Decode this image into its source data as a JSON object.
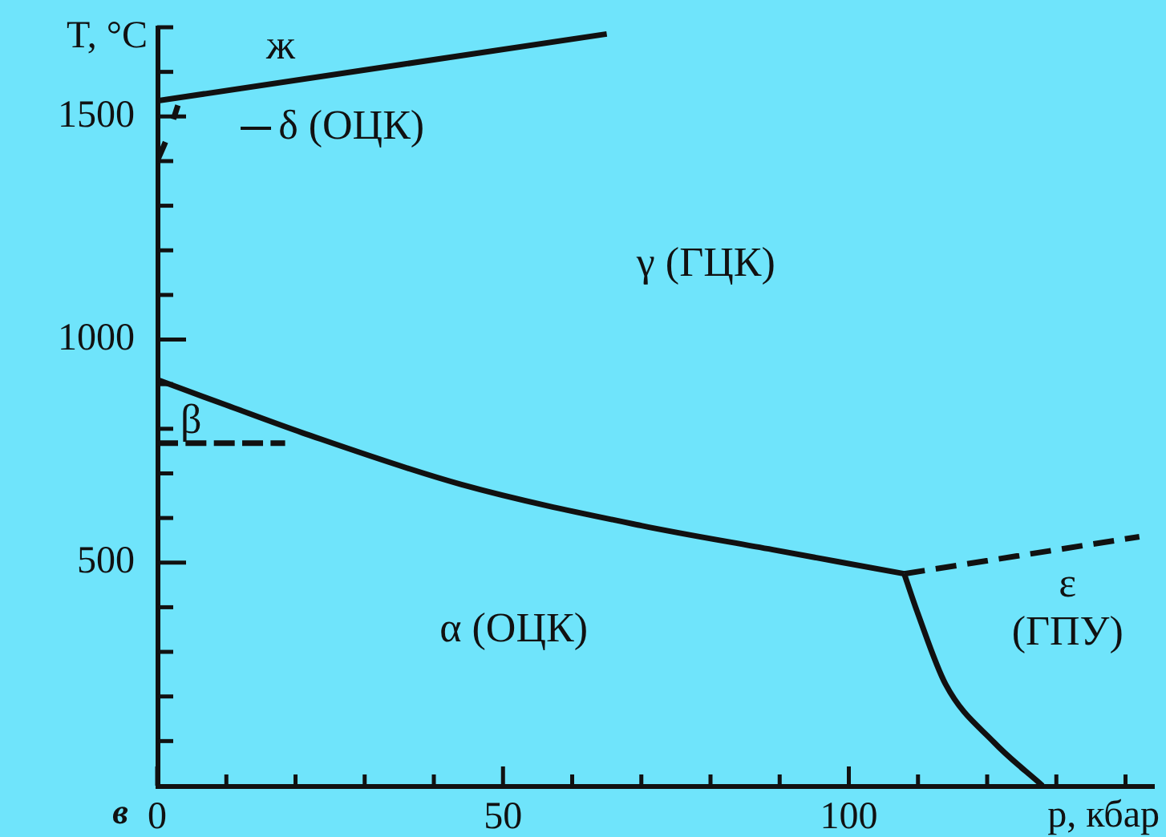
{
  "chart_data": {
    "type": "line",
    "xlabel": "p, кбар",
    "ylabel": "T, °C",
    "xlim": [
      0,
      144
    ],
    "ylim": [
      0,
      1700
    ],
    "xticks": [
      0,
      {
        "value": 10,
        "label": null
      },
      {
        "value": 20,
        "label": null
      },
      {
        "value": 30,
        "label": null
      },
      {
        "value": 40,
        "label": null
      },
      50,
      {
        "value": 60,
        "label": null
      },
      {
        "value": 70,
        "label": null
      },
      {
        "value": 80,
        "label": null
      },
      {
        "value": 90,
        "label": null
      },
      100,
      {
        "value": 110,
        "label": null
      },
      {
        "value": 120,
        "label": null
      },
      {
        "value": 130,
        "label": null
      },
      {
        "value": 140,
        "label": null
      }
    ],
    "yticks": [
      {
        "value": 100,
        "label": null
      },
      {
        "value": 200,
        "label": null
      },
      {
        "value": 300,
        "label": null
      },
      {
        "value": 400,
        "label": null
      },
      500,
      {
        "value": 600,
        "label": null
      },
      {
        "value": 700,
        "label": null
      },
      {
        "value": 800,
        "label": null
      },
      {
        "value": 900,
        "label": null
      },
      1000,
      {
        "value": 1100,
        "label": null
      },
      {
        "value": 1200,
        "label": null
      },
      {
        "value": 1300,
        "label": null
      },
      {
        "value": 1400,
        "label": null
      },
      1500,
      {
        "value": 1600,
        "label": null
      },
      {
        "value": 1700,
        "label": null
      }
    ],
    "legend": false,
    "marker": "none",
    "series": [
      {
        "color": "#111111",
        "line_style": "solid",
        "x": [
          0,
          65
        ],
        "values": [
          1535,
          1685
        ]
      },
      {
        "color": "#111111",
        "line_style": "dashed",
        "x": [
          0,
          1.5,
          3
        ],
        "values": [
          1400,
          1455,
          1525
        ]
      },
      {
        "color": "#111111",
        "line_style": "solid",
        "x": [
          0,
          10,
          21,
          44,
          70,
          89,
          108
        ],
        "values": [
          910,
          853,
          791,
          675,
          583,
          529,
          475
        ]
      },
      {
        "color": "#111111",
        "line_style": "dashed",
        "x": [
          0,
          18.5
        ],
        "values": [
          768,
          768
        ]
      },
      {
        "color": "#111111",
        "line_style": "dashed",
        "x": [
          108,
          142
        ],
        "values": [
          475,
          558
        ]
      },
      {
        "color": "#111111",
        "line_style": "solid",
        "x": [
          108,
          110,
          114,
          121,
          128
        ],
        "values": [
          475,
          385,
          227,
          97,
          0
        ]
      }
    ],
    "annotations": [
      "ж",
      "δ (ОЦК)",
      "γ (ГЦК)",
      "β",
      "α (ОЦК)",
      "ε",
      "(ГПУ)",
      "в"
    ]
  }
}
